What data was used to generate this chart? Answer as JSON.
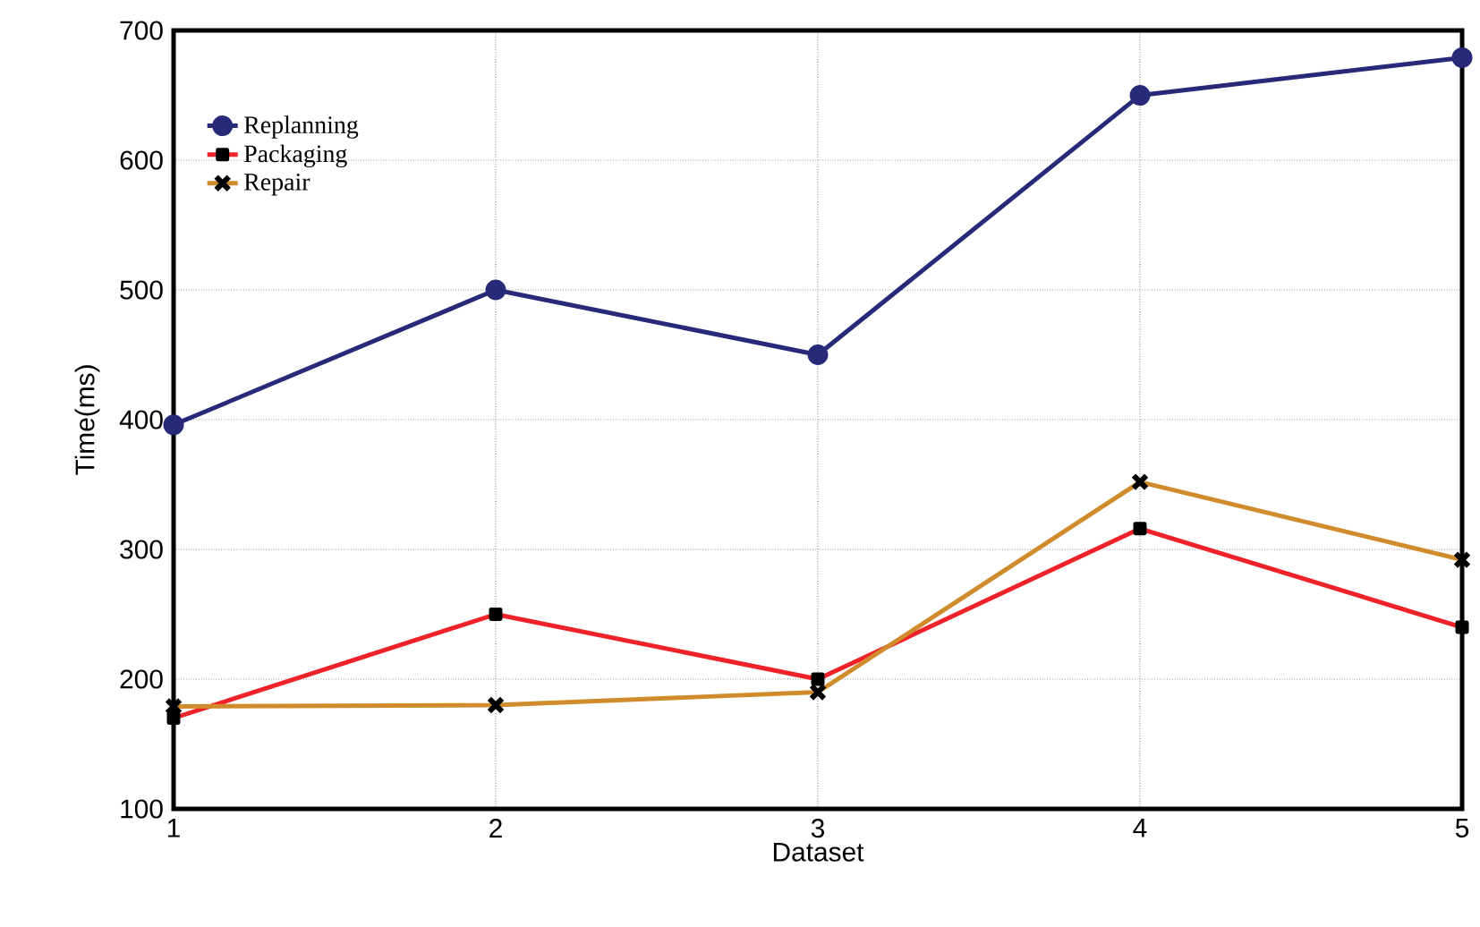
{
  "chart_data": {
    "type": "line",
    "xlabel": "Dataset",
    "ylabel": "Time(ms)",
    "x": [
      1,
      2,
      3,
      4,
      5
    ],
    "series": [
      {
        "name": "Replanning",
        "color": "#262a78",
        "marker": "circle",
        "values": [
          396,
          500,
          450,
          650,
          679
        ]
      },
      {
        "name": "Packaging",
        "color": "#ee2228",
        "marker": "square",
        "values": [
          170,
          250,
          200,
          316,
          240
        ]
      },
      {
        "name": "Repair",
        "color": "#d08c2c",
        "marker": "cross",
        "values": [
          179,
          180,
          190,
          352,
          292
        ]
      }
    ],
    "xlim": [
      1,
      5
    ],
    "ylim": [
      100,
      700
    ],
    "xticks": [
      1,
      2,
      3,
      4,
      5
    ],
    "yticks": [
      100,
      200,
      300,
      400,
      500,
      600,
      700
    ],
    "grid": true,
    "legend": "top left",
    "line_style": "solid"
  }
}
